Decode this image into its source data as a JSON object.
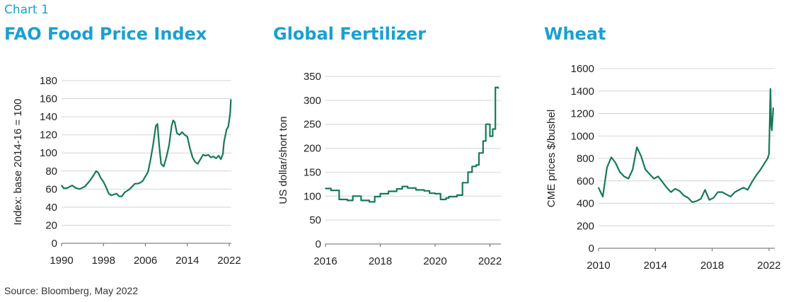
{
  "chart_label": "Chart 1",
  "source": "Source: Bloomberg, May 2022",
  "chart_data": [
    {
      "type": "line",
      "title": "FAO Food Price Index",
      "xlabel": "",
      "ylabel": "Index: base 2014-16 = 100",
      "xlim": [
        1990,
        2022.4
      ],
      "ylim": [
        0,
        180
      ],
      "xticks": [
        "1990",
        "1998",
        "2006",
        "2014",
        "2022"
      ],
      "yticks": [
        "0",
        "20",
        "40",
        "60",
        "80",
        "100",
        "120",
        "140",
        "160",
        "180"
      ],
      "grid": true,
      "color": "#157a55",
      "x": [
        1990.0,
        1990.4,
        1991.0,
        1992.0,
        1992.8,
        1993.5,
        1994.5,
        1995.5,
        1996.2,
        1996.6,
        1997.0,
        1997.5,
        1998.0,
        1998.5,
        1999.0,
        1999.5,
        2000.0,
        2000.5,
        2001.0,
        2001.5,
        2002.0,
        2002.5,
        2003.0,
        2003.5,
        2004.0,
        2004.5,
        2005.0,
        2005.5,
        2006.0,
        2006.5,
        2007.0,
        2007.5,
        2008.0,
        2008.3,
        2008.6,
        2009.0,
        2009.5,
        2010.0,
        2010.5,
        2011.0,
        2011.3,
        2011.6,
        2012.0,
        2012.5,
        2013.0,
        2013.5,
        2014.0,
        2014.5,
        2015.0,
        2015.5,
        2016.0,
        2016.5,
        2017.0,
        2017.5,
        2018.0,
        2018.5,
        2019.0,
        2019.5,
        2020.0,
        2020.4,
        2020.8,
        2021.0,
        2021.5,
        2021.8,
        2022.0,
        2022.2,
        2022.3
      ],
      "y": [
        64,
        61,
        61,
        64,
        61,
        60,
        63,
        70,
        76,
        80,
        78,
        72,
        68,
        62,
        55,
        53,
        54,
        55,
        52,
        52,
        56,
        58,
        60,
        63,
        66,
        66,
        67,
        69,
        74,
        79,
        93,
        110,
        130,
        132,
        110,
        88,
        85,
        95,
        108,
        130,
        136,
        134,
        122,
        120,
        123,
        120,
        118,
        105,
        95,
        90,
        88,
        93,
        98,
        97,
        98,
        95,
        96,
        94,
        97,
        93,
        99,
        112,
        126,
        129,
        136,
        145,
        159
      ]
    },
    {
      "type": "line",
      "title": "Global Fertilizer",
      "xlabel": "",
      "ylabel": "US dollar/short ton",
      "xlim": [
        2016,
        2022.4
      ],
      "ylim": [
        0,
        350
      ],
      "xticks": [
        "2016",
        "2018",
        "2020",
        "2022"
      ],
      "yticks": [
        "0",
        "50",
        "100",
        "150",
        "200",
        "250",
        "300",
        "350"
      ],
      "grid": true,
      "color": "#157a55",
      "x": [
        2016.0,
        2016.2,
        2016.5,
        2016.8,
        2017.0,
        2017.3,
        2017.6,
        2017.8,
        2018.0,
        2018.3,
        2018.6,
        2018.8,
        2019.0,
        2019.3,
        2019.6,
        2019.8,
        2020.0,
        2020.2,
        2020.4,
        2020.5,
        2020.8,
        2021.0,
        2021.2,
        2021.35,
        2021.5,
        2021.6,
        2021.75,
        2021.85,
        2022.0,
        2022.1,
        2022.2,
        2022.3
      ],
      "y": [
        116,
        112,
        93,
        91,
        100,
        91,
        88,
        99,
        105,
        110,
        115,
        120,
        117,
        113,
        111,
        106,
        105,
        93,
        96,
        99,
        102,
        128,
        150,
        162,
        165,
        190,
        215,
        250,
        225,
        240,
        327,
        325
      ]
    },
    {
      "type": "line",
      "title": "Wheat",
      "xlabel": "",
      "ylabel": "CME prices $/bushel",
      "xlim": [
        2010,
        2022.4
      ],
      "ylim": [
        0,
        1600
      ],
      "xticks": [
        "2010",
        "2014",
        "2018",
        "2022"
      ],
      "yticks": [
        "0",
        "200",
        "400",
        "600",
        "800",
        "1000",
        "1200",
        "1400",
        "1600"
      ],
      "grid": true,
      "color": "#157a55",
      "x": [
        2010.0,
        2010.3,
        2010.6,
        2010.9,
        2011.2,
        2011.5,
        2011.8,
        2012.1,
        2012.4,
        2012.7,
        2013.0,
        2013.3,
        2013.6,
        2013.9,
        2014.2,
        2014.5,
        2014.8,
        2015.1,
        2015.4,
        2015.7,
        2016.0,
        2016.3,
        2016.6,
        2016.9,
        2017.2,
        2017.5,
        2017.8,
        2018.1,
        2018.4,
        2018.7,
        2019.0,
        2019.3,
        2019.6,
        2019.9,
        2020.2,
        2020.5,
        2020.8,
        2021.1,
        2021.4,
        2021.7,
        2021.9,
        2022.0,
        2022.1,
        2022.15,
        2022.2,
        2022.3
      ],
      "y": [
        540,
        460,
        720,
        810,
        760,
        680,
        640,
        620,
        700,
        900,
        820,
        700,
        660,
        620,
        640,
        590,
        540,
        500,
        530,
        510,
        470,
        450,
        410,
        420,
        440,
        520,
        430,
        450,
        500,
        500,
        480,
        460,
        500,
        520,
        540,
        520,
        590,
        650,
        700,
        760,
        800,
        840,
        1420,
        1100,
        1050,
        1250
      ]
    }
  ]
}
